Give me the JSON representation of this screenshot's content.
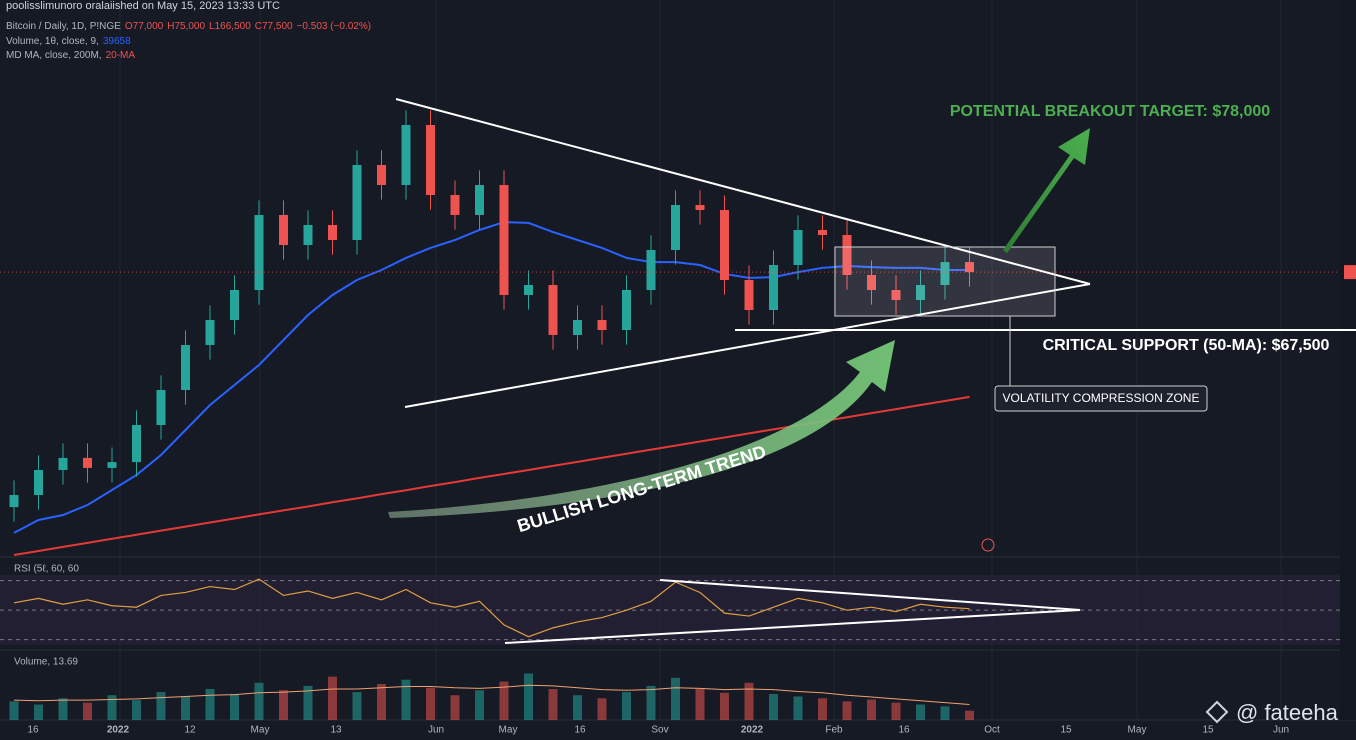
{
  "header": {
    "published": "poolisslimunoro oralaiished on May 15, 2023 13:33 UTC",
    "legend_line": [
      "Bitcoin / Daily, 1D, P!NGE",
      "O77,000",
      "H75,000",
      "L166,500",
      "C77,500",
      "−0.503 (−0.02%)"
    ],
    "volume_line": [
      "Volume, 1θ, close, 9,",
      "39658"
    ],
    "ma_line": [
      "MD MA, close, 200M,",
      "20-MA"
    ],
    "watermark": "@ fateeha"
  },
  "x_axis": {
    "labels": [
      "16",
      "2022",
      "12",
      "May",
      "13",
      "Jun",
      "May",
      "16",
      "Sov",
      "2022",
      "Feb",
      "16",
      "Oct",
      "15",
      "May",
      "15",
      "Jun"
    ]
  },
  "chart_data": [
    {
      "type": "candlestick",
      "up_color": "#26a69a",
      "down_color": "#ef5350",
      "open": [
        59000,
        59580,
        60780,
        61360,
        60880,
        61160,
        62940,
        64620,
        66780,
        67980,
        69420,
        73020,
        71580,
        72540,
        71820,
        75420,
        74460,
        77340,
        73980,
        73020,
        74460,
        69180,
        69660,
        67260,
        67980,
        67500,
        69420,
        71340,
        73500,
        73260,
        69900,
        68460,
        70620,
        72300,
        72060,
        70140,
        69420,
        68940,
        69660,
        70760
      ],
      "high": [
        60280,
        61480,
        62060,
        62060,
        61860,
        63640,
        65320,
        67480,
        68680,
        70120,
        73720,
        73720,
        73240,
        73240,
        76120,
        76120,
        78040,
        78040,
        74680,
        75160,
        75160,
        70360,
        70360,
        68680,
        68680,
        70120,
        72040,
        74200,
        74200,
        73960,
        70600,
        71320,
        73000,
        73000,
        72760,
        70840,
        70120,
        70360,
        71460,
        71460
      ],
      "low": [
        58300,
        58880,
        60080,
        60180,
        60180,
        60460,
        62240,
        63920,
        66080,
        67280,
        68720,
        70880,
        70880,
        71120,
        71120,
        73760,
        73760,
        73280,
        72320,
        72320,
        68480,
        68480,
        66560,
        66560,
        66800,
        66800,
        68720,
        70640,
        72560,
        69200,
        67760,
        67760,
        69920,
        71360,
        69440,
        68720,
        68240,
        68240,
        68960,
        69580
      ],
      "close": [
        59580,
        60780,
        61360,
        60880,
        61160,
        62940,
        64620,
        66780,
        67980,
        69420,
        73020,
        71580,
        72540,
        71820,
        75420,
        74460,
        77340,
        73980,
        73020,
        74460,
        69180,
        69660,
        67260,
        67980,
        67500,
        69420,
        71340,
        73500,
        73260,
        69900,
        68460,
        70620,
        72300,
        72060,
        70140,
        69420,
        68940,
        69660,
        70760,
        70280
      ],
      "series": [
        {
          "color": "#2962ff",
          "values": [
            57760,
            58380,
            58620,
            59100,
            59820,
            60540,
            61500,
            62700,
            63900,
            64860,
            65820,
            67020,
            68220,
            69180,
            69900,
            70380,
            70960,
            71440,
            71820,
            72300,
            72680,
            72640,
            72200,
            71820,
            71440,
            70960,
            70760,
            70760,
            70620,
            70190,
            70000,
            70040,
            70280,
            70480,
            70570,
            70520,
            70480,
            70480,
            70380,
            70380
          ]
        },
        {
          "color": "#e53935",
          "values": [
            56700,
            56890,
            57090,
            57280,
            57480,
            57670,
            57870,
            58060,
            58260,
            58450,
            58650,
            58840,
            59030,
            59230,
            59420,
            59620,
            59810,
            60010,
            60200,
            60400,
            60590,
            60780,
            60980,
            61170,
            61370,
            61560,
            61760,
            61950,
            62150,
            62340,
            62540,
            62730,
            62920,
            63120,
            63310,
            63510,
            63700,
            63900,
            64090,
            64290
          ]
        }
      ],
      "ylim": [
        56700,
        79500
      ],
      "annotations": [
        "POTENTIAL BREAKOUT TARGET: $78,000",
        "CRITICAL SUPPORT (50-MA): $67,500",
        "VOLATILITY COMPRESSION ZONE",
        "BULLISH LONG-TERM TREND"
      ]
    },
    {
      "type": "line",
      "title": "RSI (5ℓ, 60, 60",
      "color": "#e0a040",
      "values": [
        55,
        58,
        54,
        57,
        53,
        52,
        60,
        62,
        66,
        64,
        71,
        60,
        63,
        58,
        62,
        57,
        64,
        55,
        52,
        56,
        40,
        32,
        38,
        42,
        45,
        50,
        56,
        69,
        62,
        48,
        46,
        52,
        58,
        55,
        50,
        52,
        49,
        54,
        52,
        51
      ],
      "ylim": [
        23,
        84
      ],
      "levels": [
        70,
        50,
        30
      ]
    },
    {
      "type": "volume",
      "title": "Volume, 13.69",
      "ma_color": "#f0a070",
      "values": [
        30,
        25,
        35,
        28,
        40,
        32,
        45,
        38,
        50,
        42,
        60,
        48,
        55,
        70,
        45,
        58,
        65,
        52,
        40,
        48,
        62,
        75,
        50,
        40,
        35,
        45,
        55,
        68,
        50,
        44,
        60,
        42,
        38,
        35,
        30,
        33,
        28,
        25,
        22,
        15
      ],
      "ma_values": [
        32,
        31,
        32,
        32,
        33,
        34,
        36,
        38,
        40,
        41,
        44,
        45,
        47,
        50,
        50,
        52,
        54,
        54,
        52,
        51,
        53,
        56,
        55,
        52,
        49,
        48,
        49,
        52,
        51,
        49,
        50,
        49,
        46,
        44,
        40,
        37,
        34,
        31,
        28,
        25
      ],
      "ylim": [
        0,
        100
      ]
    }
  ]
}
